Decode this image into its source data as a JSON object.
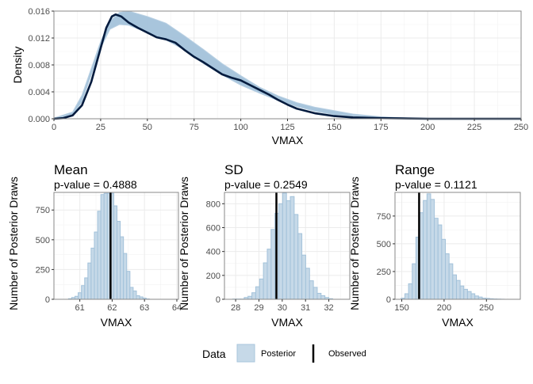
{
  "chart_data": [
    {
      "type": "area",
      "xlabel": "VMAX",
      "ylabel": "Density",
      "xlim": [
        0,
        250
      ],
      "ylim": [
        0,
        0.016
      ],
      "xticks": [
        "0",
        "25",
        "50",
        "75",
        "100",
        "125",
        "150",
        "175",
        "200",
        "225",
        "250"
      ],
      "yticks": [
        "0.000",
        "0.004",
        "0.008",
        "0.012",
        "0.016"
      ],
      "grid": true,
      "posterior_band": {
        "x": [
          0,
          10,
          15,
          20,
          25,
          30,
          35,
          40,
          50,
          60,
          70,
          80,
          90,
          100,
          110,
          120,
          130,
          140,
          150,
          160,
          175,
          190,
          200,
          250
        ],
        "lower": [
          0,
          0.0006,
          0.0025,
          0.0065,
          0.0105,
          0.0133,
          0.014,
          0.0139,
          0.0128,
          0.0117,
          0.0102,
          0.0082,
          0.0065,
          0.005,
          0.0038,
          0.0027,
          0.0018,
          0.0011,
          0.0006,
          0.0004,
          0.0002,
          0.0001,
          0,
          0
        ],
        "upper": [
          0.0001,
          0.001,
          0.0035,
          0.0075,
          0.0115,
          0.0145,
          0.0158,
          0.016,
          0.0152,
          0.0142,
          0.0123,
          0.0103,
          0.0082,
          0.0064,
          0.0047,
          0.0034,
          0.0024,
          0.0017,
          0.0012,
          0.0007,
          0.0003,
          0.0001,
          5e-05,
          0
        ]
      },
      "observed": {
        "x": [
          0,
          5,
          10,
          15,
          20,
          25,
          28,
          31,
          33,
          36,
          40,
          45,
          50,
          55,
          60,
          65,
          70,
          75,
          80,
          85,
          90,
          95,
          100,
          105,
          110,
          115,
          120,
          125,
          130,
          140,
          150,
          160,
          175,
          200,
          250
        ],
        "y": [
          0,
          0.0001,
          0.0005,
          0.002,
          0.0055,
          0.0105,
          0.0135,
          0.0152,
          0.0155,
          0.0152,
          0.0143,
          0.0135,
          0.0128,
          0.0121,
          0.0118,
          0.0113,
          0.0102,
          0.0092,
          0.0084,
          0.0075,
          0.0066,
          0.0061,
          0.0057,
          0.005,
          0.0043,
          0.0036,
          0.0028,
          0.0021,
          0.0015,
          0.0008,
          0.0004,
          0.0002,
          0.0001,
          0,
          0
        ]
      }
    },
    {
      "type": "bar",
      "title": "Mean",
      "subtitle": "p-value = 0.4888",
      "xlabel": "VMAX",
      "ylabel": "Number of Posterior Draws",
      "xlim": [
        60.2,
        64.05
      ],
      "ylim": [
        0,
        898
      ],
      "xticks": [
        "61",
        "62",
        "63",
        "64"
      ],
      "yticks": [
        "0",
        "250",
        "500",
        "750"
      ],
      "bin_width": 0.1,
      "bin_start": 60.7,
      "counts": [
        5,
        15,
        25,
        55,
        115,
        180,
        305,
        430,
        565,
        740,
        880,
        890,
        890,
        890,
        785,
        655,
        525,
        385,
        235,
        100,
        70,
        30,
        20,
        10,
        3
      ],
      "observed": 61.95
    },
    {
      "type": "bar",
      "title": "SD",
      "subtitle": "p-value = 0.2549",
      "xlabel": "VMAX",
      "ylabel": "Number of Posterior Draws",
      "xlim": [
        27.52,
        32.9
      ],
      "ylim": [
        0,
        895
      ],
      "xticks": [
        "28",
        "29",
        "30",
        "31",
        "32"
      ],
      "yticks": [
        "0",
        "200",
        "400",
        "600",
        "800"
      ],
      "bin_width": 0.165,
      "bin_start": 27.955,
      "counts": [
        2,
        2,
        2,
        15,
        25,
        55,
        105,
        170,
        305,
        420,
        585,
        720,
        800,
        890,
        825,
        860,
        710,
        550,
        370,
        260,
        155,
        100,
        50,
        30,
        15,
        5
      ],
      "observed": 29.75
    },
    {
      "type": "bar",
      "title": "Range",
      "subtitle": "p-value = 0.1121",
      "xlabel": "VMAX",
      "ylabel": "Number of Posterior Draws",
      "xlim": [
        142,
        290
      ],
      "ylim": [
        0,
        963
      ],
      "xticks": [
        "150",
        "200",
        "250"
      ],
      "yticks": [
        "0",
        "250",
        "500",
        "750"
      ],
      "bin_width": 4.35,
      "bin_start": 151.5,
      "counts": [
        10,
        50,
        140,
        320,
        560,
        780,
        890,
        950,
        900,
        730,
        670,
        540,
        410,
        320,
        220,
        170,
        120,
        90,
        70,
        50,
        30,
        20,
        10,
        8,
        5,
        3,
        2,
        1
      ],
      "observed": 170.5
    }
  ],
  "legend": {
    "title": "Data",
    "items": [
      {
        "label": "Posterior",
        "fill": "#c6d9e8",
        "stroke": "#a8c6dc"
      },
      {
        "label": "Observed",
        "color": "#000000"
      }
    ]
  },
  "colors": {
    "band": "#a3c2da",
    "observed_density": "#031b3e",
    "hist_fill": "#c6d9e8",
    "hist_stroke": "#a3c2da",
    "observed_line": "#000000"
  }
}
